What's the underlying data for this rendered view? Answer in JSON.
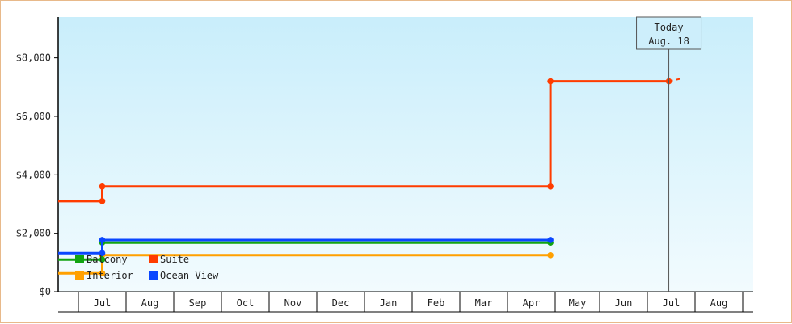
{
  "chart_data": {
    "type": "line",
    "step": true,
    "x_unit": "month",
    "months": [
      "Jul",
      "Aug",
      "Sep",
      "Oct",
      "Nov",
      "Dec",
      "Jan",
      "Feb",
      "Mar",
      "Apr",
      "May",
      "Jun",
      "Jul",
      "Aug"
    ],
    "ylim": [
      0,
      9400
    ],
    "yticks": [
      {
        "value": 0,
        "label": "$0"
      },
      {
        "value": 2000,
        "label": "$2,000"
      },
      {
        "value": 4000,
        "label": "$4,000"
      },
      {
        "value": 6000,
        "label": "$6,000"
      },
      {
        "value": 8000,
        "label": "$8,000"
      }
    ],
    "grid": false,
    "background": [
      "#c9eefb",
      "#f2fbfe"
    ],
    "legend_position": "bottom-left",
    "series": [
      {
        "name": "Balcony",
        "color": "#11a411",
        "points": [
          {
            "x": 0.0,
            "y": 1100
          },
          {
            "x": 1.5,
            "y": 1100
          },
          {
            "x": 1.5,
            "y": 1680
          },
          {
            "x": 10.9,
            "y": 1680
          }
        ]
      },
      {
        "name": "Suite",
        "color": "#ff3c00",
        "points": [
          {
            "x": 0.0,
            "y": 3100
          },
          {
            "x": 1.5,
            "y": 3100
          },
          {
            "x": 1.5,
            "y": 3600
          },
          {
            "x": 10.9,
            "y": 3600
          },
          {
            "x": 10.9,
            "y": 7200
          },
          {
            "x": 13.45,
            "y": 7200
          }
        ],
        "projection": [
          {
            "x": 13.45,
            "y": 7200
          },
          {
            "x": 14.0,
            "y": 7950
          }
        ]
      },
      {
        "name": "Interior",
        "color": "#ffa000",
        "points": [
          {
            "x": 0.0,
            "y": 630
          },
          {
            "x": 1.5,
            "y": 630
          },
          {
            "x": 1.5,
            "y": 1250
          },
          {
            "x": 10.9,
            "y": 1250
          }
        ]
      },
      {
        "name": "Ocean View",
        "color": "#0a46ff",
        "points": [
          {
            "x": 0.0,
            "y": 1320
          },
          {
            "x": 1.5,
            "y": 1320
          },
          {
            "x": 1.5,
            "y": 1770
          },
          {
            "x": 10.9,
            "y": 1770
          }
        ]
      }
    ],
    "today": {
      "x": 13.45,
      "line1": "Today",
      "line2": "Aug. 18"
    }
  }
}
